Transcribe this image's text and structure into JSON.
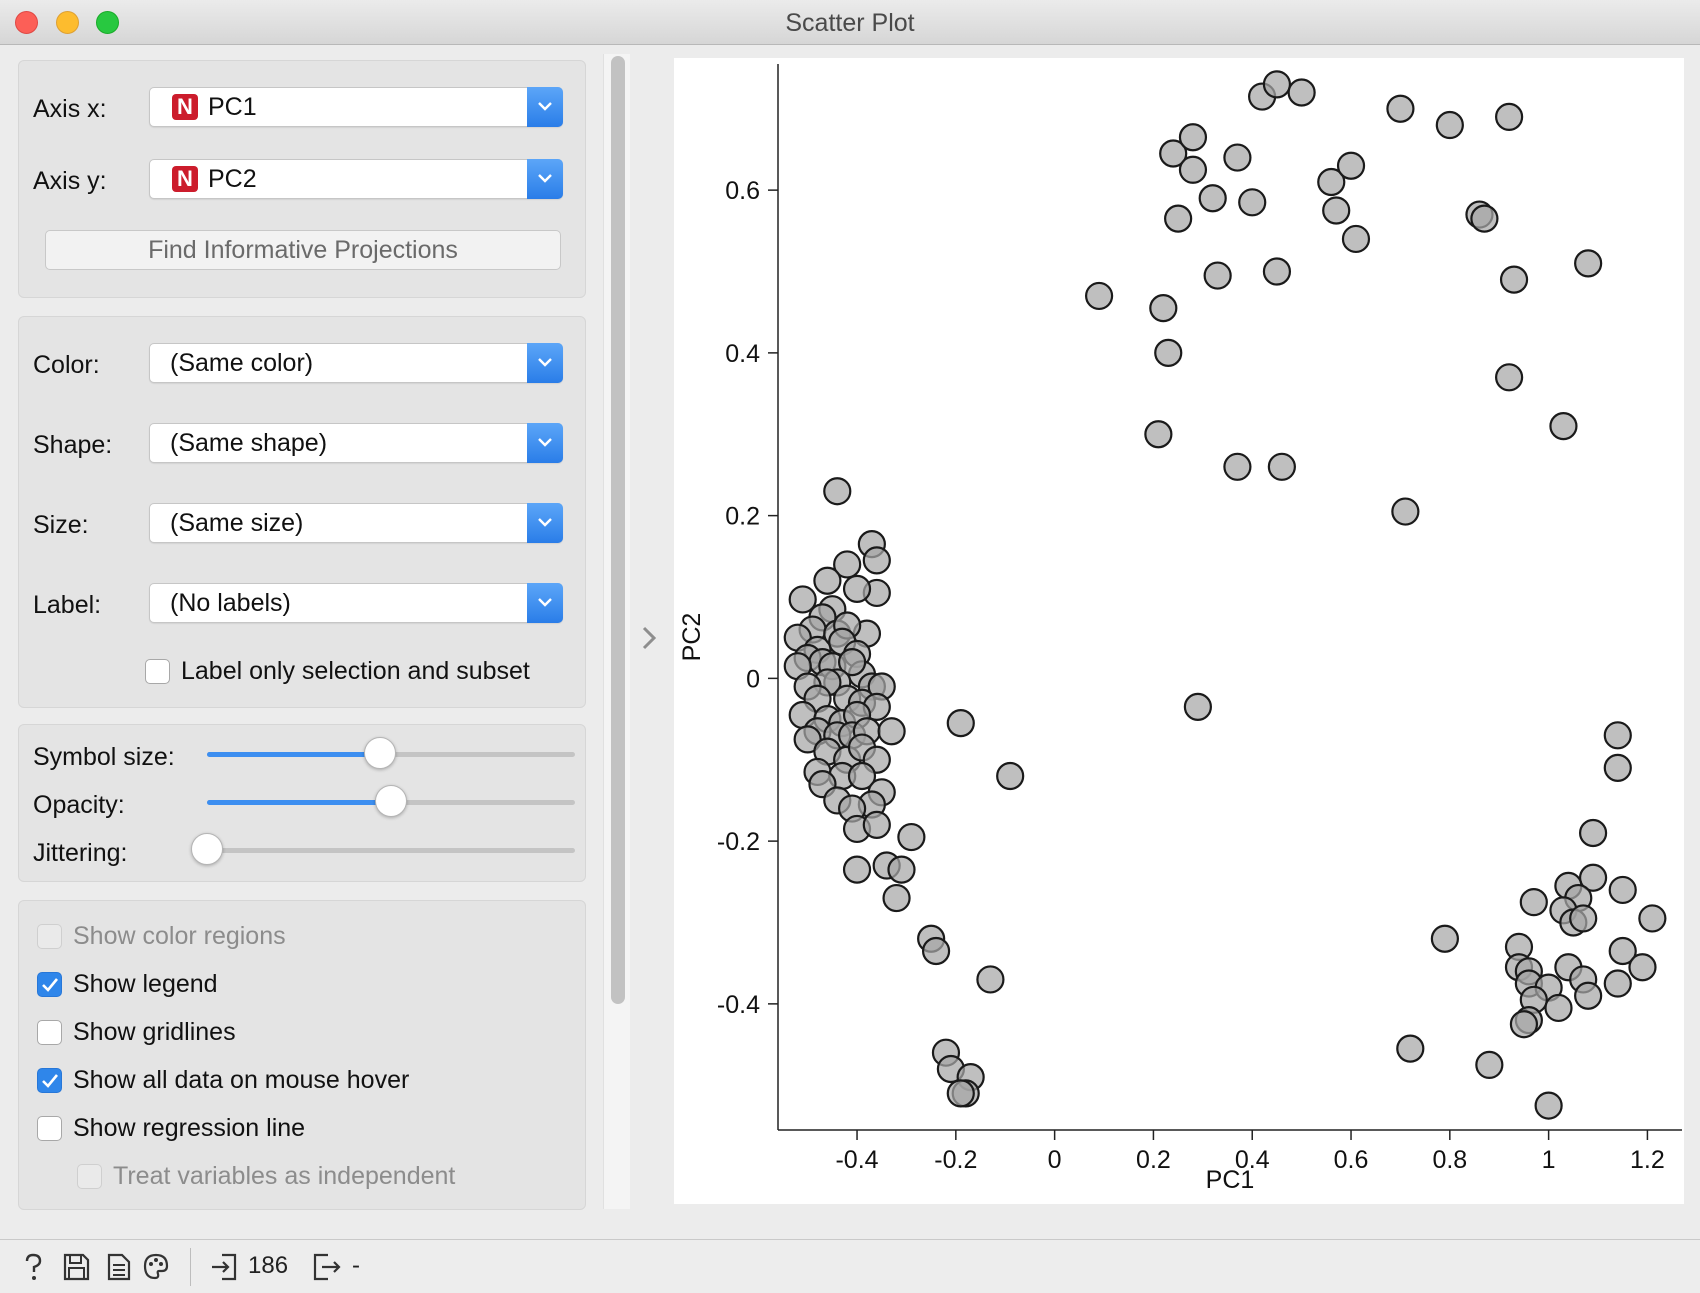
{
  "window": {
    "title": "Scatter Plot"
  },
  "axes_box": {
    "axis_x_label": "Axis x:",
    "axis_x_value": "PC1",
    "axis_y_label": "Axis y:",
    "axis_y_value": "PC2",
    "type_badge": "N",
    "find_projections_label": "Find Informative Projections"
  },
  "attributes_box": {
    "color_label": "Color:",
    "color_value": "(Same color)",
    "shape_label": "Shape:",
    "shape_value": "(Same shape)",
    "size_label": "Size:",
    "size_value": "(Same size)",
    "label_label": "Label:",
    "label_value": "(No labels)",
    "label_only_selection": {
      "label": "Label only selection and subset",
      "checked": false
    }
  },
  "sliders_box": {
    "symbol_size": {
      "label": "Symbol size:",
      "value": 0.47
    },
    "opacity": {
      "label": "Opacity:",
      "value": 0.5
    },
    "jittering": {
      "label": "Jittering:",
      "value": 0.0
    }
  },
  "options_box": {
    "show_color_regions": {
      "label": "Show color regions",
      "checked": false,
      "enabled": false
    },
    "show_legend": {
      "label": "Show legend",
      "checked": true,
      "enabled": true
    },
    "show_gridlines": {
      "label": "Show gridlines",
      "checked": false,
      "enabled": true
    },
    "show_all_data_hover": {
      "label": "Show all data on mouse hover",
      "checked": true,
      "enabled": true
    },
    "show_regression_line": {
      "label": "Show regression line",
      "checked": false,
      "enabled": true
    },
    "treat_independent": {
      "label": "Treat variables as independent",
      "checked": false,
      "enabled": false
    }
  },
  "status_bar": {
    "input_count": "186",
    "output_count": "-"
  },
  "colors": {
    "accent": "#2f86ea",
    "point_fill": "#a6a6a6",
    "point_stroke": "#1a1a1a",
    "badge": "#cc1c2c"
  },
  "chart_data": {
    "type": "scatter",
    "xlabel": "PC1",
    "ylabel": "PC2",
    "xlim": [
      -0.56,
      1.27
    ],
    "ylim": [
      -0.555,
      0.755
    ],
    "xticks": [
      -0.4,
      -0.2,
      0,
      0.2,
      0.4,
      0.6,
      0.8,
      1,
      1.2
    ],
    "yticks": [
      -0.4,
      -0.2,
      0,
      0.2,
      0.4,
      0.6
    ],
    "xtick_labels": [
      "-0.4",
      "-0.2",
      "0",
      "0.2",
      "0.4",
      "0.6",
      "0.8",
      "1",
      "1.2"
    ],
    "ytick_labels": [
      "-0.4",
      "-0.2",
      "0",
      "0.2",
      "0.4",
      "0.6"
    ],
    "grid": false,
    "points": [
      [
        0.09,
        0.47
      ],
      [
        0.22,
        0.455
      ],
      [
        0.23,
        0.4
      ],
      [
        0.21,
        0.3
      ],
      [
        0.29,
        -0.035
      ],
      [
        0.37,
        0.26
      ],
      [
        0.46,
        0.26
      ],
      [
        0.33,
        0.495
      ],
      [
        0.45,
        0.5
      ],
      [
        0.25,
        0.565
      ],
      [
        0.24,
        0.645
      ],
      [
        0.28,
        0.665
      ],
      [
        0.28,
        0.625
      ],
      [
        0.32,
        0.59
      ],
      [
        0.37,
        0.64
      ],
      [
        0.4,
        0.585
      ],
      [
        0.42,
        0.715
      ],
      [
        0.45,
        0.73
      ],
      [
        0.5,
        0.72
      ],
      [
        0.56,
        0.61
      ],
      [
        0.57,
        0.575
      ],
      [
        0.6,
        0.63
      ],
      [
        0.61,
        0.54
      ],
      [
        0.7,
        0.7
      ],
      [
        0.8,
        0.68
      ],
      [
        0.92,
        0.69
      ],
      [
        0.86,
        0.57
      ],
      [
        0.87,
        0.565
      ],
      [
        0.93,
        0.49
      ],
      [
        0.92,
        0.37
      ],
      [
        1.03,
        0.31
      ],
      [
        1.08,
        0.51
      ],
      [
        0.71,
        0.205
      ],
      [
        -0.44,
        0.23
      ],
      [
        -0.37,
        0.165
      ],
      [
        -0.36,
        0.145
      ],
      [
        -0.36,
        0.105
      ],
      [
        -0.42,
        0.14
      ],
      [
        -0.46,
        0.12
      ],
      [
        -0.51,
        0.097
      ],
      [
        -0.45,
        0.085
      ],
      [
        -0.47,
        0.075
      ],
      [
        -0.4,
        0.11
      ],
      [
        -0.38,
        0.055
      ],
      [
        -0.49,
        0.06
      ],
      [
        -0.52,
        0.05
      ],
      [
        -0.48,
        0.035
      ],
      [
        -0.44,
        0.055
      ],
      [
        -0.42,
        0.065
      ],
      [
        -0.43,
        0.045
      ],
      [
        -0.4,
        0.03
      ],
      [
        -0.5,
        0.025
      ],
      [
        -0.47,
        0.02
      ],
      [
        -0.52,
        0.015
      ],
      [
        -0.45,
        0.015
      ],
      [
        -0.39,
        0.005
      ],
      [
        -0.41,
        0.02
      ],
      [
        -0.37,
        -0.01
      ],
      [
        -0.35,
        -0.01
      ],
      [
        -0.44,
        -0.005
      ],
      [
        -0.46,
        -0.005
      ],
      [
        -0.5,
        -0.01
      ],
      [
        -0.48,
        -0.025
      ],
      [
        -0.42,
        -0.025
      ],
      [
        -0.39,
        -0.03
      ],
      [
        -0.36,
        -0.035
      ],
      [
        -0.51,
        -0.045
      ],
      [
        -0.46,
        -0.05
      ],
      [
        -0.43,
        -0.055
      ],
      [
        -0.4,
        -0.045
      ],
      [
        -0.48,
        -0.065
      ],
      [
        -0.44,
        -0.07
      ],
      [
        -0.41,
        -0.07
      ],
      [
        -0.38,
        -0.065
      ],
      [
        -0.33,
        -0.065
      ],
      [
        -0.5,
        -0.075
      ],
      [
        -0.46,
        -0.09
      ],
      [
        -0.42,
        -0.1
      ],
      [
        -0.39,
        -0.085
      ],
      [
        -0.36,
        -0.1
      ],
      [
        -0.48,
        -0.115
      ],
      [
        -0.43,
        -0.12
      ],
      [
        -0.39,
        -0.12
      ],
      [
        -0.47,
        -0.13
      ],
      [
        -0.35,
        -0.14
      ],
      [
        -0.44,
        -0.15
      ],
      [
        -0.37,
        -0.155
      ],
      [
        -0.41,
        -0.16
      ],
      [
        -0.4,
        -0.185
      ],
      [
        -0.36,
        -0.18
      ],
      [
        -0.29,
        -0.195
      ],
      [
        -0.4,
        -0.235
      ],
      [
        -0.34,
        -0.23
      ],
      [
        -0.31,
        -0.235
      ],
      [
        -0.32,
        -0.27
      ],
      [
        -0.25,
        -0.32
      ],
      [
        -0.24,
        -0.335
      ],
      [
        -0.13,
        -0.37
      ],
      [
        -0.22,
        -0.46
      ],
      [
        -0.21,
        -0.48
      ],
      [
        -0.17,
        -0.49
      ],
      [
        -0.18,
        -0.51
      ],
      [
        -0.19,
        -0.51
      ],
      [
        -0.19,
        -0.055
      ],
      [
        -0.09,
        -0.12
      ],
      [
        1.14,
        -0.07
      ],
      [
        1.14,
        -0.11
      ],
      [
        1.09,
        -0.19
      ],
      [
        1.09,
        -0.245
      ],
      [
        1.04,
        -0.255
      ],
      [
        1.06,
        -0.27
      ],
      [
        1.15,
        -0.26
      ],
      [
        1.21,
        -0.295
      ],
      [
        0.97,
        -0.275
      ],
      [
        1.03,
        -0.285
      ],
      [
        1.05,
        -0.3
      ],
      [
        1.07,
        -0.295
      ],
      [
        0.79,
        -0.32
      ],
      [
        0.94,
        -0.33
      ],
      [
        0.94,
        -0.355
      ],
      [
        0.96,
        -0.36
      ],
      [
        1.15,
        -0.335
      ],
      [
        1.19,
        -0.355
      ],
      [
        1.04,
        -0.355
      ],
      [
        1.07,
        -0.37
      ],
      [
        0.96,
        -0.375
      ],
      [
        1.0,
        -0.38
      ],
      [
        1.08,
        -0.39
      ],
      [
        1.14,
        -0.375
      ],
      [
        0.97,
        -0.395
      ],
      [
        1.02,
        -0.405
      ],
      [
        0.96,
        -0.42
      ],
      [
        0.95,
        -0.425
      ],
      [
        0.72,
        -0.455
      ],
      [
        0.88,
        -0.475
      ],
      [
        1.0,
        -0.525
      ]
    ]
  }
}
